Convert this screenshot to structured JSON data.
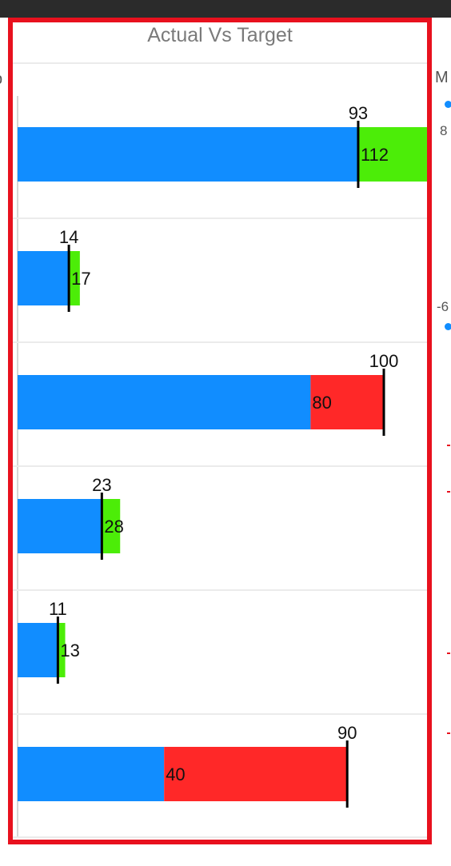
{
  "header": {
    "title": "Actual Vs Target"
  },
  "right_panel": {
    "partial_title": "M",
    "partial_value_1": "8",
    "partial_value_2": "-6"
  },
  "left_panel": {
    "partial_label": "p"
  },
  "colors": {
    "actual": "#118dff",
    "above_target": "#4ced08",
    "below_target": "#ff2828",
    "target_marker": "#000000",
    "frame": "#e8111e"
  },
  "chart_data": {
    "type": "bar",
    "orientation": "horizontal",
    "title": "Actual Vs Target",
    "legend": "none",
    "grid": true,
    "rows": [
      {
        "target": 93,
        "actual": 112,
        "status": "above"
      },
      {
        "target": 14,
        "actual": 17,
        "status": "above"
      },
      {
        "target": 100,
        "actual": 80,
        "status": "below"
      },
      {
        "target": 23,
        "actual": 28,
        "status": "above"
      },
      {
        "target": 11,
        "actual": 13,
        "status": "above"
      },
      {
        "target": 90,
        "actual": 40,
        "status": "below"
      }
    ]
  }
}
